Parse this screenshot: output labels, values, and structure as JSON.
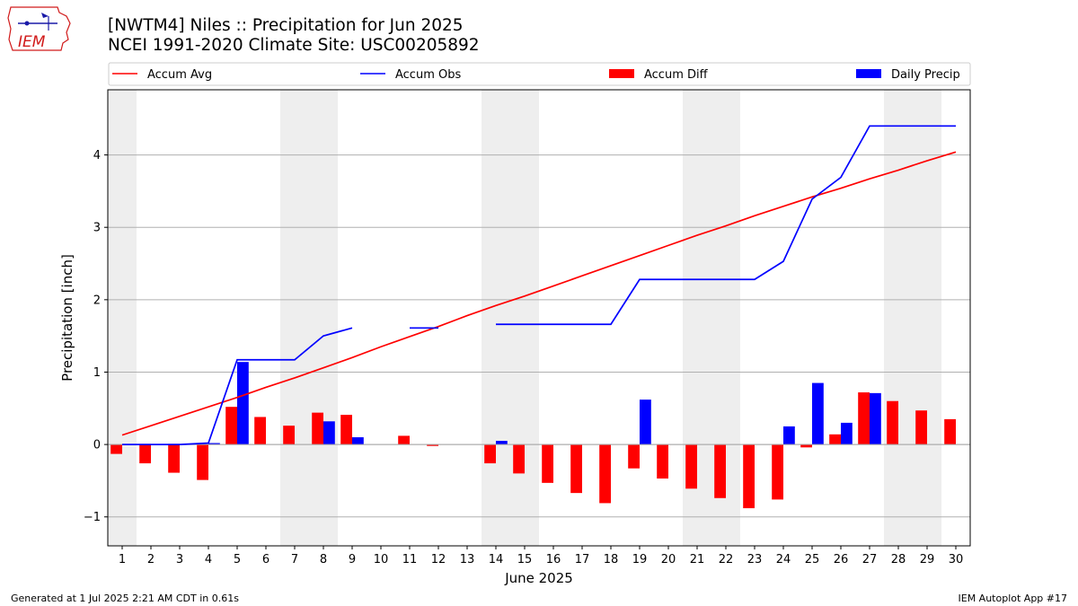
{
  "header": {
    "title_line1": "[NWTM4] Niles :: Precipitation for Jun 2025",
    "title_line2": "NCEI 1991-2020 Climate Site: USC00205892"
  },
  "logo": {
    "text": "IEM",
    "color": "#d11a1a"
  },
  "footer": {
    "left": "Generated at 1 Jul 2025 2:21 AM CDT in 0.61s",
    "right": "IEM Autoplot App #17"
  },
  "chart_data": {
    "type": "bar",
    "title": "[NWTM4] Niles :: Precipitation for Jun 2025",
    "xlabel": "June 2025",
    "ylabel": "Precipitation [inch]",
    "xlim": [
      0.5,
      30.5
    ],
    "ylim": [
      -1.4,
      4.9
    ],
    "yticks": [
      -1,
      0,
      1,
      2,
      3,
      4
    ],
    "ytick_labels": [
      "−1",
      "0",
      "1",
      "2",
      "3",
      "4"
    ],
    "grid": "horizontal",
    "legend_position": "top",
    "weekend_days": [
      1,
      7,
      8,
      14,
      15,
      21,
      22,
      28,
      29
    ],
    "days": [
      1,
      2,
      3,
      4,
      5,
      6,
      7,
      8,
      9,
      10,
      11,
      12,
      13,
      14,
      15,
      16,
      17,
      18,
      19,
      20,
      21,
      22,
      23,
      24,
      25,
      26,
      27,
      28,
      29,
      30
    ],
    "series": [
      {
        "name": "Accum Avg",
        "kind": "line",
        "color": "#ff0000",
        "values": [
          0.13,
          0.26,
          0.39,
          0.52,
          0.65,
          0.79,
          0.92,
          1.06,
          1.2,
          1.35,
          1.49,
          1.63,
          1.78,
          1.92,
          2.05,
          2.19,
          2.33,
          2.47,
          2.61,
          2.75,
          2.89,
          3.02,
          3.16,
          3.29,
          3.42,
          3.54,
          3.67,
          3.79,
          3.92,
          4.04
        ]
      },
      {
        "name": "Accum Obs",
        "kind": "line",
        "color": "#0000ff",
        "values": [
          0.0,
          0.0,
          0.0,
          0.02,
          1.17,
          1.17,
          1.17,
          1.5,
          1.61,
          null,
          1.61,
          1.61,
          null,
          1.66,
          1.66,
          1.66,
          1.66,
          1.66,
          2.28,
          2.28,
          2.28,
          2.28,
          2.28,
          2.53,
          3.39,
          3.69,
          4.4,
          4.4,
          4.4,
          4.4
        ]
      },
      {
        "name": "Accum Diff",
        "kind": "bar",
        "color": "#ff0000",
        "values": [
          -0.13,
          -0.26,
          -0.39,
          -0.49,
          0.52,
          0.38,
          0.26,
          0.44,
          0.41,
          null,
          0.12,
          -0.02,
          null,
          -0.26,
          -0.4,
          -0.53,
          -0.67,
          -0.81,
          -0.33,
          -0.47,
          -0.61,
          -0.74,
          -0.88,
          -0.76,
          -0.04,
          0.14,
          0.72,
          0.6,
          0.47,
          0.35
        ]
      },
      {
        "name": "Daily Precip",
        "kind": "bar",
        "color": "#0000ff",
        "values": [
          0.0,
          0.0,
          0.0,
          0.02,
          1.14,
          0.0,
          0.0,
          0.32,
          0.1,
          null,
          0.0,
          0.0,
          null,
          0.05,
          0.0,
          0.0,
          0.0,
          0.0,
          0.62,
          0.0,
          0.0,
          0.0,
          0.0,
          0.25,
          0.85,
          0.3,
          0.71,
          0.0,
          0.0,
          0.0
        ]
      }
    ]
  }
}
